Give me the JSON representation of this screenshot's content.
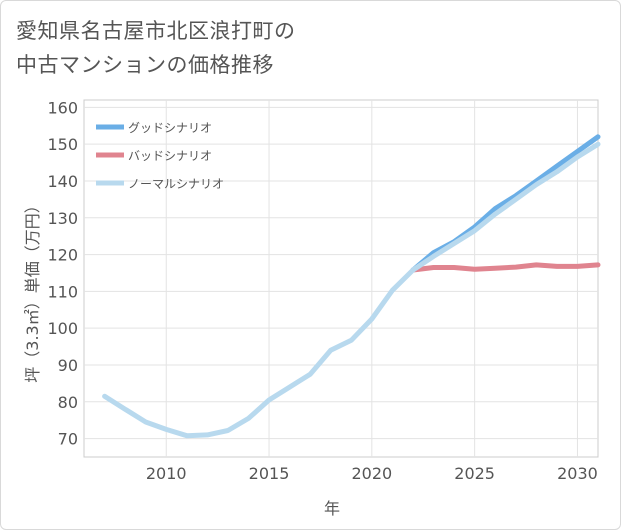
{
  "title_lines": [
    "愛知県名古屋市北区浪打町の",
    "中古マンションの価格推移"
  ],
  "chart_data": {
    "type": "line",
    "title": "愛知県名古屋市北区浪打町の中古マンションの価格推移",
    "xlabel": "年",
    "ylabel": "坪（3.3㎡）単価（万円）",
    "xlim": [
      2006,
      2031
    ],
    "ylim": [
      65,
      162
    ],
    "xticks": [
      2010,
      2015,
      2020,
      2025,
      2030
    ],
    "yticks": [
      70,
      80,
      90,
      100,
      110,
      120,
      130,
      140,
      150,
      160
    ],
    "grid": true,
    "legend_position": "top-left",
    "series": [
      {
        "name": "グッドシナリオ",
        "color": "#6aaee6",
        "x": [
          2022,
          2023,
          2024,
          2025,
          2026,
          2027,
          2028,
          2029,
          2030,
          2031
        ],
        "y": [
          115.8,
          120.5,
          123.5,
          127.5,
          132.5,
          136,
          140,
          144,
          148,
          152
        ]
      },
      {
        "name": "バッドシナリオ",
        "color": "#e0848f",
        "x": [
          2022,
          2023,
          2024,
          2025,
          2026,
          2027,
          2028,
          2029,
          2030,
          2031
        ],
        "y": [
          115.8,
          116.5,
          116.5,
          116,
          116.3,
          116.6,
          117.2,
          116.8,
          116.8,
          117.2
        ]
      },
      {
        "name": "ノーマルシナリオ",
        "color": "#b8d9ee",
        "x": [
          2007,
          2008,
          2009,
          2010,
          2011,
          2012,
          2013,
          2014,
          2015,
          2016,
          2017,
          2018,
          2019,
          2020,
          2021,
          2022,
          2023,
          2024,
          2025,
          2026,
          2027,
          2028,
          2029,
          2030,
          2031
        ],
        "y": [
          81.5,
          78,
          74.5,
          72.5,
          70.8,
          71,
          72.2,
          75.5,
          80.5,
          84,
          87.5,
          94,
          96.7,
          102.5,
          110.3,
          115.8,
          119.5,
          123,
          126.5,
          131,
          135,
          139,
          142.5,
          146.5,
          150
        ]
      }
    ]
  }
}
